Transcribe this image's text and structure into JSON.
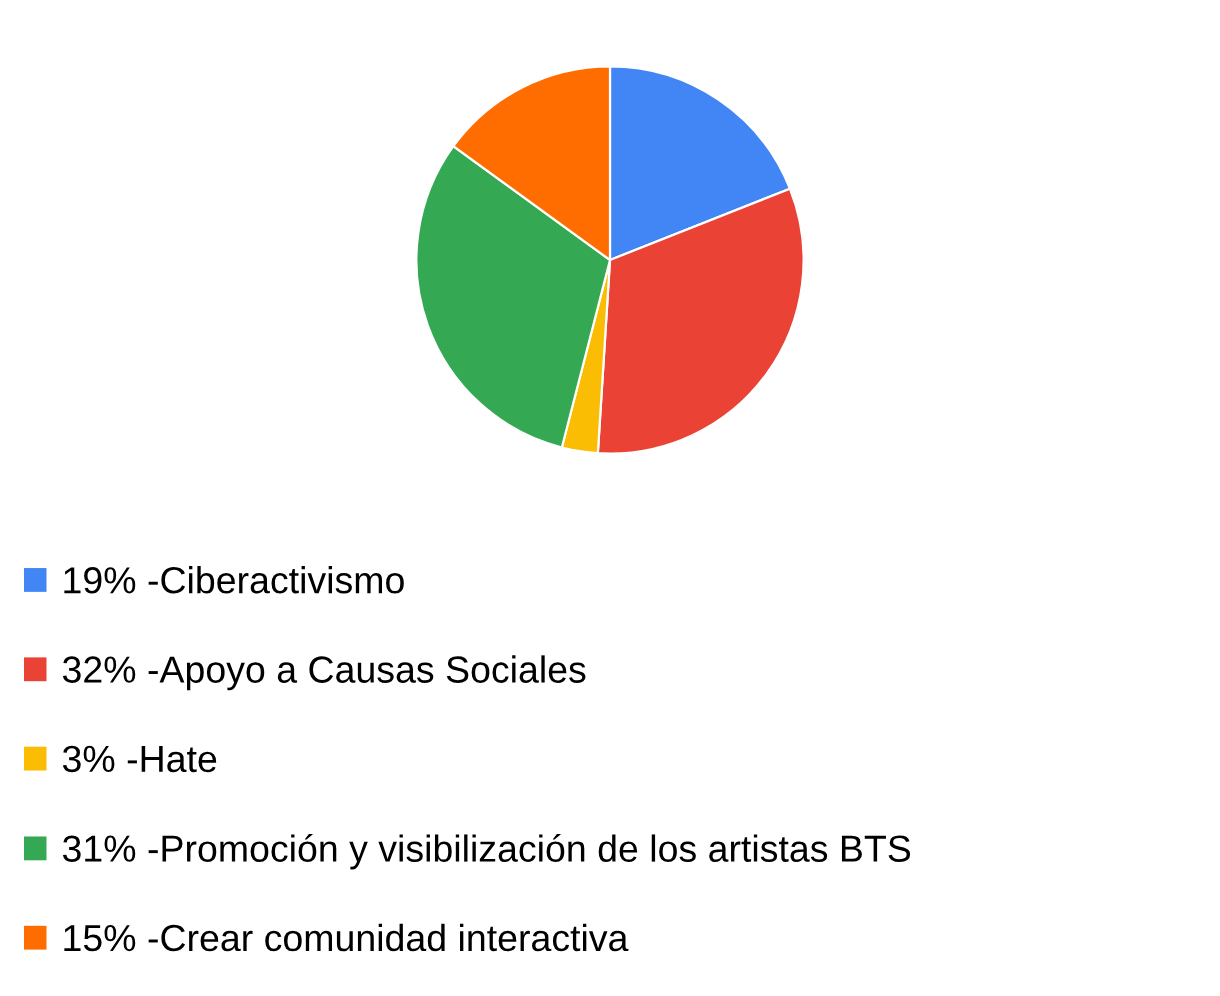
{
  "chart_data": {
    "type": "pie",
    "categories": [
      "19% -Ciberactivismo",
      "32% -Apoyo a Causas Sociales",
      "3% -Hate",
      "31% -Promoción y visibilización de los artistas BTS",
      "15% -Crear comunidad interactiva"
    ],
    "values": [
      19,
      32,
      3,
      31,
      15
    ],
    "colors": [
      "#4285f4",
      "#ea4335",
      "#fbbc04",
      "#34a853",
      "#ff6d01"
    ],
    "legend": "bottom"
  }
}
